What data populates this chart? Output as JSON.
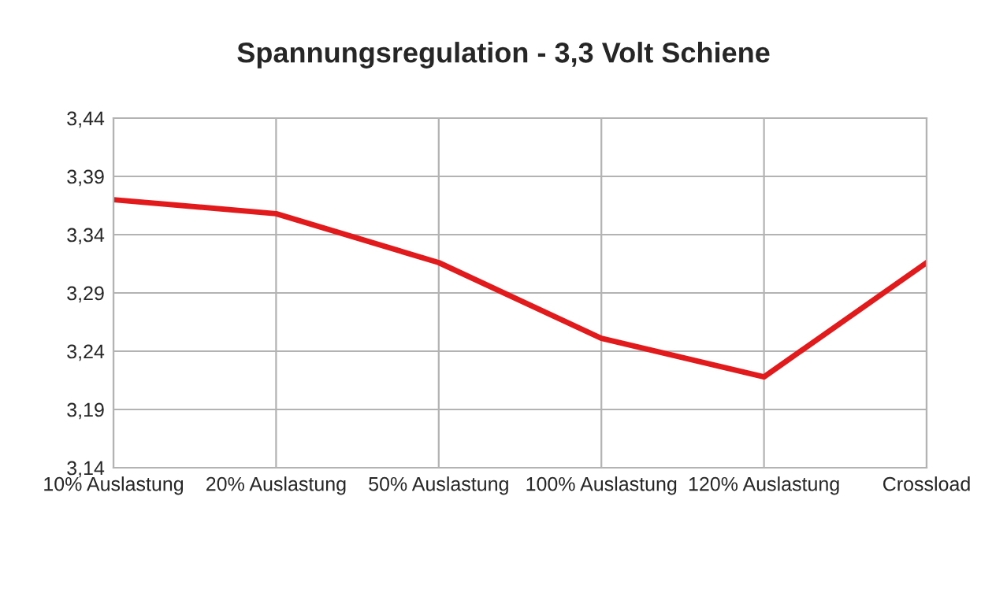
{
  "chart_data": {
    "type": "line",
    "title": "Spannungsregulation - 3,3 Volt Schiene",
    "categories": [
      "10% Auslastung",
      "20% Auslastung",
      "50% Auslastung",
      "100% Auslastung",
      "120% Auslastung",
      "Crossload"
    ],
    "series": [
      {
        "color": "#e31a1c",
        "values": [
          3.37,
          3.358,
          3.316,
          3.251,
          3.218,
          3.316
        ]
      }
    ],
    "ylim": [
      3.14,
      3.44
    ],
    "yticks": [
      {
        "value": 3.14,
        "label": "3,14"
      },
      {
        "value": 3.19,
        "label": "3,19"
      },
      {
        "value": 3.24,
        "label": "3,24"
      },
      {
        "value": 3.29,
        "label": "3,29"
      },
      {
        "value": 3.34,
        "label": "3,34"
      },
      {
        "value": 3.39,
        "label": "3,39"
      },
      {
        "value": 3.44,
        "label": "3,44"
      }
    ],
    "grid": true,
    "marker": "none",
    "line_style": "solid"
  }
}
